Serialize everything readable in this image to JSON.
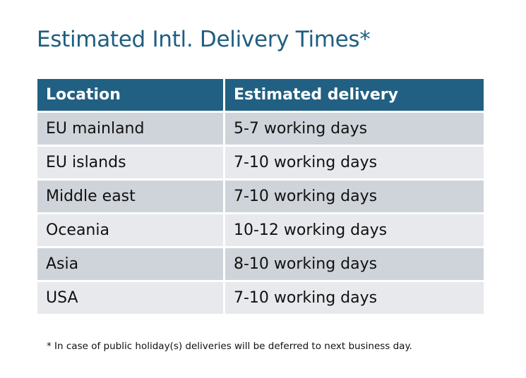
{
  "title": "Estimated Intl. Delivery Times*",
  "colors": {
    "header": "#216082",
    "row_odd": "#cfd4db",
    "row_even": "#e7e9ec",
    "title": "#1f5e80"
  },
  "table": {
    "headers": [
      "Location",
      "Estimated delivery"
    ],
    "rows": [
      [
        "EU mainland",
        "5-7 working days"
      ],
      [
        "EU islands",
        "7-10 working days"
      ],
      [
        "Middle east",
        "7-10 working days"
      ],
      [
        "Oceania",
        "10-12 working days"
      ],
      [
        "Asia",
        "8-10 working days"
      ],
      [
        "USA",
        "7-10 working days"
      ]
    ]
  },
  "footnote": "* In case of public holiday(s) deliveries will be deferred to next business day."
}
